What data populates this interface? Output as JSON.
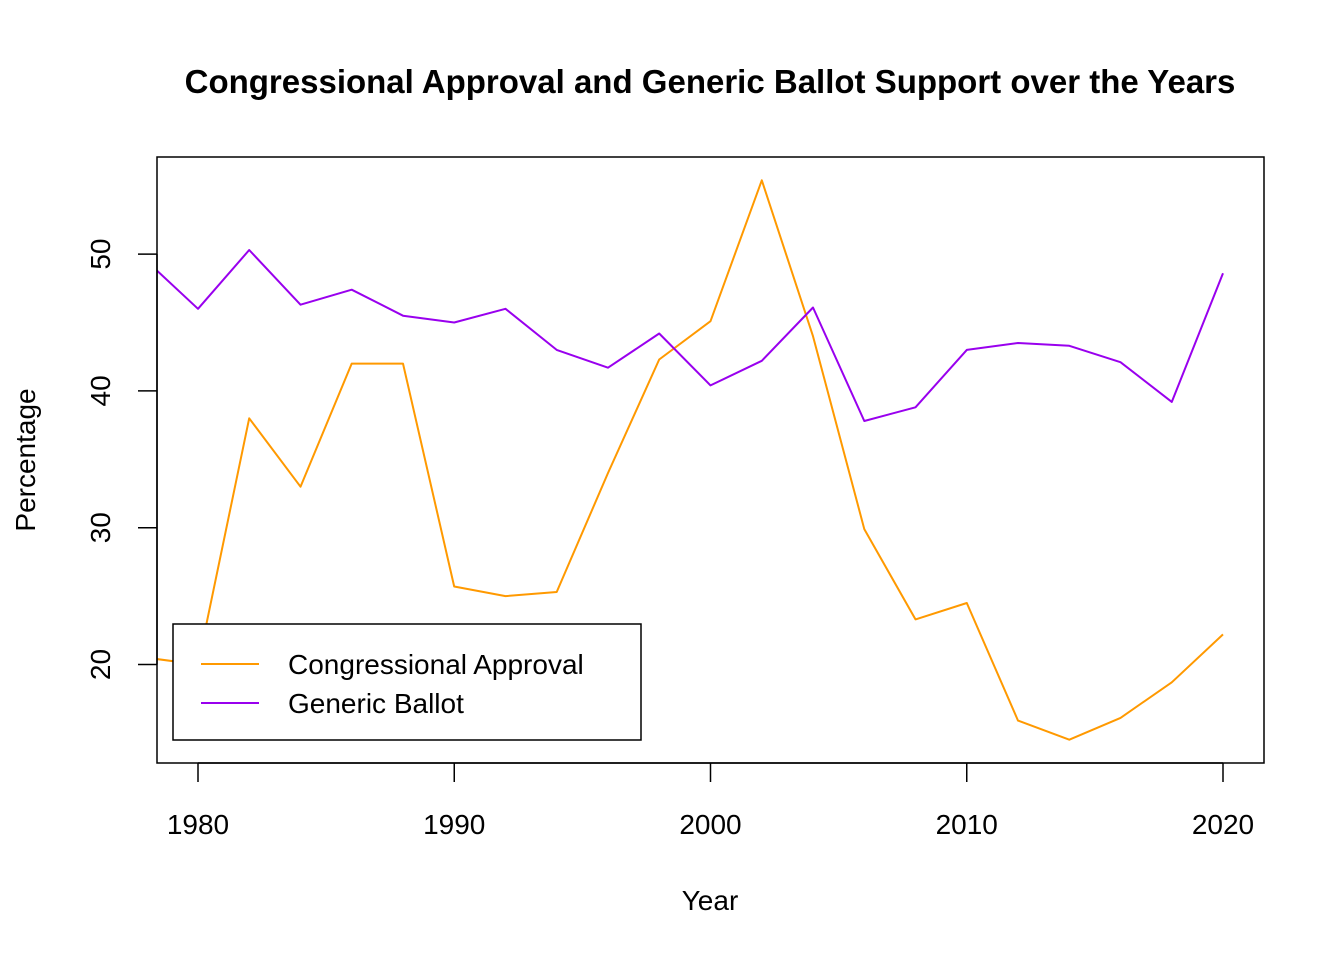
{
  "chart_data": {
    "type": "line",
    "title": "Congressional Approval and Generic Ballot Support over the Years",
    "xlabel": "Year",
    "ylabel": "Percentage",
    "xlim": [
      1978.4,
      2021.6
    ],
    "ylim": [
      12.8,
      57.1
    ],
    "x_ticks": [
      "1980",
      "1990",
      "2000",
      "2010",
      "2020"
    ],
    "y_ticks": [
      "20",
      "30",
      "40",
      "50"
    ],
    "grid": false,
    "legend_position": "bottom-left",
    "x": [
      1978,
      1980,
      1982,
      1984,
      1986,
      1988,
      1990,
      1992,
      1994,
      1996,
      1998,
      2000,
      2002,
      2004,
      2006,
      2008,
      2010,
      2012,
      2014,
      2016,
      2018,
      2020
    ],
    "series": [
      {
        "name": "Congressional Approval",
        "color": "#FF9900",
        "values": [
          20.5,
          20.0,
          38.0,
          33.0,
          42.0,
          42.0,
          25.7,
          25.0,
          25.3,
          34.0,
          42.3,
          45.1,
          55.4,
          44.0,
          29.9,
          23.3,
          24.5,
          15.9,
          14.5,
          16.1,
          18.7,
          22.2
        ]
      },
      {
        "name": "Generic Ballot",
        "color": "#9900EE",
        "values": [
          49.5,
          46.0,
          50.3,
          46.3,
          47.4,
          45.5,
          45.0,
          46.0,
          43.0,
          41.7,
          44.2,
          40.4,
          42.2,
          46.1,
          37.8,
          38.8,
          43.0,
          43.5,
          43.3,
          42.1,
          39.2,
          48.6
        ]
      }
    ]
  }
}
